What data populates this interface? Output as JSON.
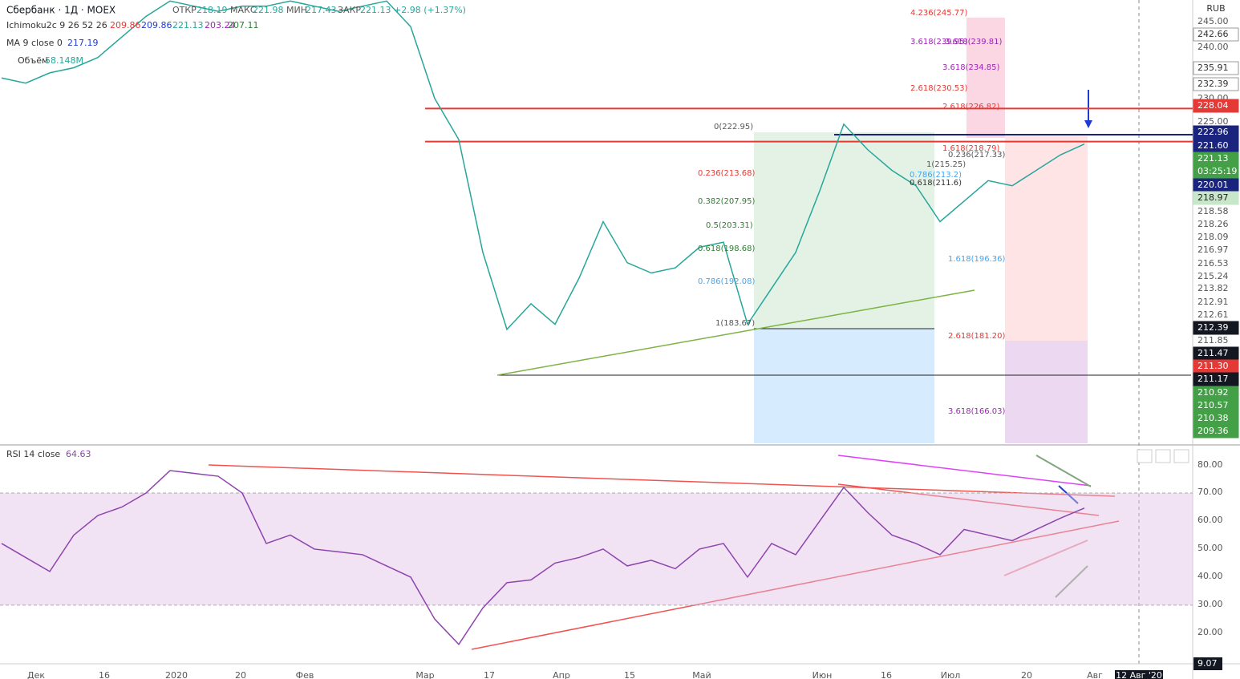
{
  "header": {
    "symbol": "Сбербанк · 1Д · MOEX",
    "open_label": "ОТКР",
    "open": "218.19",
    "high_label": "МАКС",
    "high": "221.98",
    "low_label": "МИН",
    "low": "217.43",
    "close_label": "ЗАКР",
    "close": "221.13",
    "change": "+2.98 (+1.37%)"
  },
  "indicators": {
    "ichimoku": "Ichimoku2c 9 26 52 26",
    "ichimoku_values": [
      "209.86",
      "209.86",
      "221.13",
      "203.24",
      "207.11"
    ],
    "ma": "MA 9 close 0",
    "ma_value": "217.19",
    "volume": "Объём",
    "volume_value": "58.148M",
    "rsi": "RSI 14 close",
    "rsi_value": "64.63"
  },
  "chart": {
    "price_ylim": [
      162.8,
      249.2
    ],
    "rsi_ylim": [
      9.07,
      86.6
    ],
    "rsi_band": [
      30,
      70
    ],
    "price": [
      234,
      233,
      235,
      236,
      238,
      242,
      246,
      249,
      248,
      247,
      248,
      248,
      249,
      248,
      247,
      248,
      249,
      244,
      230,
      222,
      200,
      185,
      190,
      186,
      195,
      206,
      198,
      196,
      197,
      201,
      202,
      186,
      193,
      200,
      212,
      225,
      220,
      216,
      213,
      206,
      210,
      214,
      213,
      216,
      219,
      221.13
    ],
    "rsi": [
      52,
      47,
      42,
      55,
      62,
      65,
      70,
      78,
      77,
      76,
      70,
      52,
      55,
      50,
      49,
      48,
      44,
      40,
      25,
      16,
      29,
      38,
      39,
      45,
      47,
      50,
      44,
      46,
      43,
      50,
      52,
      40,
      52,
      48,
      60,
      72,
      63,
      55,
      52,
      48,
      57,
      55,
      53,
      57,
      61,
      64.63
    ],
    "levels": [
      {
        "value": 228.04,
        "color": "#e53935"
      },
      {
        "value": 222.96,
        "color": "#1a237e"
      },
      {
        "value": 221.6,
        "color": "#e53935"
      }
    ]
  },
  "price_axis": {
    "currency": "RUB",
    "labels": [
      "245.00",
      "242.66",
      "240.00",
      "235.91",
      "232.39",
      "230.00",
      "228.04",
      "225.00",
      "222.96",
      "221.60",
      "221.13",
      "03:25:19",
      "220.01",
      "218.97",
      "218.58",
      "218.26",
      "218.09",
      "216.97",
      "216.53",
      "215.24",
      "213.82",
      "212.91",
      "212.61",
      "212.39",
      "211.85",
      "211.47",
      "211.30",
      "211.17",
      "210.92",
      "210.57",
      "210.38",
      "209.36"
    ]
  },
  "rsi_axis": {
    "labels": [
      "80.00",
      "70.00",
      "60.00",
      "50.00",
      "40.00",
      "30.00",
      "20.00",
      "9.07"
    ]
  },
  "time_axis": {
    "labels": [
      "Дек",
      "16",
      "2020",
      "20",
      "Фев",
      "Мар",
      "17",
      "Апр",
      "15",
      "Май",
      "Июн",
      "16",
      "Июл",
      "20",
      "Авг",
      "12 Авг '20"
    ]
  },
  "fib_labels": [
    "4.236(245.77)",
    "3.618(239.95)",
    "3.618(239.81)",
    "3.618(234.85)",
    "2.618(230.53)",
    "2.618(226.82)",
    "0(222.95)",
    "1.618(218.79)",
    "0.236(217.33)",
    "1(215.25)",
    "0.236(213.68)",
    "0.786(213.2)",
    "0.618(211.6)",
    "0.382(207.95)",
    "0.5(203.31)",
    "0.618(198.68)",
    "1.618(196.36)",
    "0.786(192.08)",
    "1(183.67)",
    "2.618(181.20)",
    "3.618(166.03)"
  ]
}
